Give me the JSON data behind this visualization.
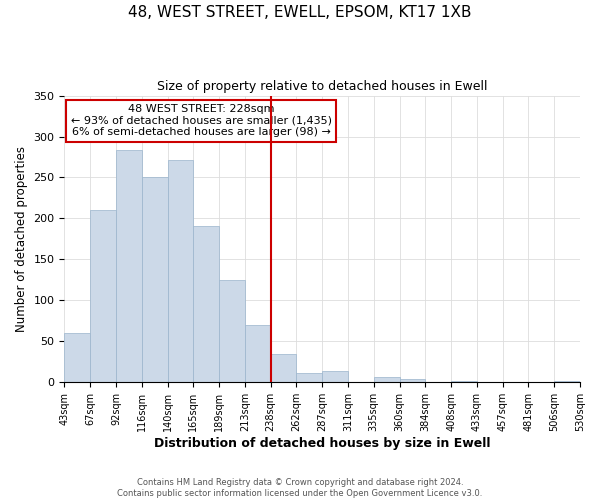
{
  "title": "48, WEST STREET, EWELL, EPSOM, KT17 1XB",
  "subtitle": "Size of property relative to detached houses in Ewell",
  "xlabel": "Distribution of detached houses by size in Ewell",
  "ylabel": "Number of detached properties",
  "footer_lines": [
    "Contains HM Land Registry data © Crown copyright and database right 2024.",
    "Contains public sector information licensed under the Open Government Licence v3.0."
  ],
  "bins": [
    "43sqm",
    "67sqm",
    "92sqm",
    "116sqm",
    "140sqm",
    "165sqm",
    "189sqm",
    "213sqm",
    "238sqm",
    "262sqm",
    "287sqm",
    "311sqm",
    "335sqm",
    "360sqm",
    "384sqm",
    "408sqm",
    "433sqm",
    "457sqm",
    "481sqm",
    "506sqm",
    "530sqm"
  ],
  "values": [
    60,
    210,
    283,
    251,
    271,
    191,
    125,
    70,
    35,
    11,
    14,
    0,
    6,
    4,
    0,
    2,
    0,
    0,
    0,
    2
  ],
  "bar_color": "#ccd9e8",
  "bar_edge_color": "#9ab4cc",
  "vline_color": "#cc0000",
  "annotation_title": "48 WEST STREET: 228sqm",
  "annotation_line1": "← 93% of detached houses are smaller (1,435)",
  "annotation_line2": "6% of semi-detached houses are larger (98) →",
  "annotation_box_color": "#ffffff",
  "annotation_box_edge": "#cc0000",
  "ylim": [
    0,
    350
  ],
  "yticks": [
    0,
    50,
    100,
    150,
    200,
    250,
    300,
    350
  ],
  "grid_color": "#dddddd"
}
